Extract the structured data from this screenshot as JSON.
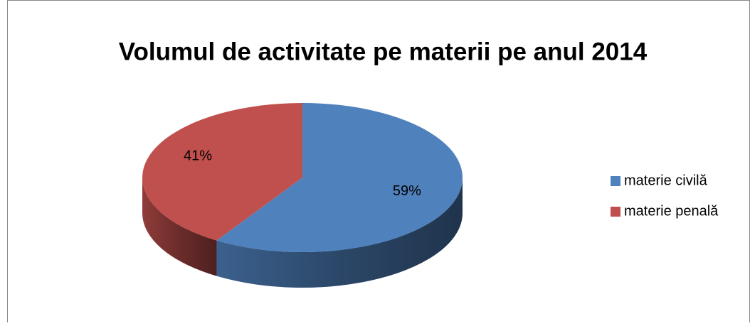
{
  "chart_data": {
    "type": "pie",
    "title": "Volumul de activitate pe materii pe anul 2014",
    "categories": [
      "materie civilă",
      "materie penală"
    ],
    "values": [
      59,
      41
    ],
    "value_labels": [
      "59%",
      "41%"
    ],
    "colors": [
      "#4f81bd",
      "#c0504d"
    ],
    "legend": "right"
  }
}
